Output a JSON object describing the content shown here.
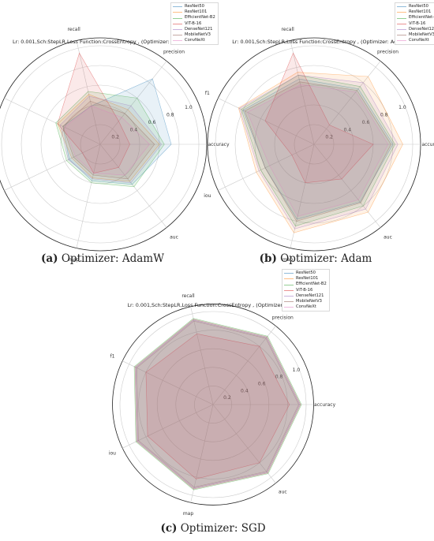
{
  "figure": {
    "captions": [
      {
        "letter": "(a)",
        "text": "Optimizer: AdamW"
      },
      {
        "letter": "(b)",
        "text": "Optimizer: Adam"
      },
      {
        "letter": "(c)",
        "text": "Optimizer: SGD"
      }
    ]
  },
  "chart_data": [
    {
      "type": "radar",
      "title": "Lr: 0.001,Sch:StepLR,Loss Function:CrossEntropy , (Optimizer: AdamW)",
      "axes": [
        "accuracy",
        "precision",
        "recall",
        "f1",
        "iou",
        "map",
        "auc"
      ],
      "rticks": [
        "0.2",
        "0.4",
        "0.6",
        "0.8",
        "1.0"
      ],
      "rlim": [
        0,
        1
      ],
      "legend_position": "top-right",
      "series": [
        {
          "name": "ResNet50",
          "color": "#1f77b4",
          "values": [
            0.72,
            0.85,
            0.4,
            0.42,
            0.35,
            0.38,
            0.52
          ]
        },
        {
          "name": "ResNet101",
          "color": "#ff7f0e",
          "values": [
            0.6,
            0.45,
            0.52,
            0.48,
            0.32,
            0.35,
            0.48
          ]
        },
        {
          "name": "EfficientNet-B2",
          "color": "#2ca02c",
          "values": [
            0.65,
            0.6,
            0.55,
            0.5,
            0.38,
            0.4,
            0.55
          ]
        },
        {
          "name": "ViT-B-16",
          "color": "#d62728",
          "values": [
            0.3,
            0.3,
            0.95,
            0.48,
            0.2,
            0.3,
            0.3
          ]
        },
        {
          "name": "DenseNet121",
          "color": "#9467bd",
          "values": [
            0.62,
            0.5,
            0.5,
            0.45,
            0.36,
            0.36,
            0.5
          ]
        },
        {
          "name": "MobileNetV3",
          "color": "#8c564b",
          "values": [
            0.55,
            0.4,
            0.45,
            0.42,
            0.3,
            0.32,
            0.45
          ]
        },
        {
          "name": "ConvNeXt",
          "color": "#e377c2",
          "values": [
            0.5,
            0.35,
            0.4,
            0.4,
            0.28,
            0.3,
            0.4
          ]
        }
      ]
    },
    {
      "type": "radar",
      "title": "Lr: 0.001,Sch:StepLR,Loss Function:CrossEntropy , (Optimizer: Adam)",
      "axes": [
        "accuracy",
        "precision",
        "recall",
        "f1",
        "iou",
        "map",
        "auc"
      ],
      "rticks": [
        "0.2",
        "0.4",
        "0.6",
        "0.8",
        "1.0"
      ],
      "rlim": [
        0,
        1
      ],
      "legend_position": "top-right",
      "series": [
        {
          "name": "ResNet50",
          "color": "#1f77b4",
          "values": [
            0.8,
            0.72,
            0.68,
            0.8,
            0.55,
            0.78,
            0.75
          ]
        },
        {
          "name": "ResNet101",
          "color": "#ff7f0e",
          "values": [
            0.9,
            0.88,
            0.75,
            0.85,
            0.65,
            0.92,
            0.88
          ]
        },
        {
          "name": "EfficientNet-B2",
          "color": "#2ca02c",
          "values": [
            0.82,
            0.75,
            0.72,
            0.82,
            0.6,
            0.85,
            0.8
          ]
        },
        {
          "name": "ViT-B-16",
          "color": "#d62728",
          "values": [
            0.6,
            0.25,
            0.95,
            0.55,
            0.25,
            0.4,
            0.45
          ]
        },
        {
          "name": "DenseNet121",
          "color": "#9467bd",
          "values": [
            0.85,
            0.8,
            0.72,
            0.84,
            0.62,
            0.88,
            0.84
          ]
        },
        {
          "name": "MobileNetV3",
          "color": "#8c564b",
          "values": [
            0.78,
            0.7,
            0.65,
            0.78,
            0.55,
            0.8,
            0.76
          ]
        },
        {
          "name": "ConvNeXt",
          "color": "#e377c2",
          "values": [
            0.75,
            0.68,
            0.62,
            0.75,
            0.5,
            0.75,
            0.72
          ]
        }
      ]
    },
    {
      "type": "radar",
      "title": "Lr: 0.001,Sch:StepLR,Loss Function:CrossEntropy , (Optimizer: SGD)",
      "axes": [
        "accuracy",
        "precision",
        "recall",
        "f1",
        "iou",
        "map",
        "auc"
      ],
      "rticks": [
        "0.2",
        "0.4",
        "0.6",
        "0.8",
        "1.0"
      ],
      "rlim": [
        0,
        1
      ],
      "legend_position": "top-center",
      "series": [
        {
          "name": "ResNet50",
          "color": "#1f77b4",
          "values": [
            0.93,
            0.92,
            0.93,
            0.92,
            0.9,
            0.92,
            0.93
          ]
        },
        {
          "name": "ResNet101",
          "color": "#ff7f0e",
          "values": [
            0.94,
            0.93,
            0.94,
            0.93,
            0.91,
            0.93,
            0.94
          ]
        },
        {
          "name": "EfficientNet-B2",
          "color": "#2ca02c",
          "values": [
            0.95,
            0.94,
            0.95,
            0.94,
            0.92,
            0.94,
            0.95
          ]
        },
        {
          "name": "ViT-B-16",
          "color": "#d62728",
          "values": [
            0.82,
            0.8,
            0.78,
            0.8,
            0.78,
            0.82,
            0.8
          ]
        },
        {
          "name": "DenseNet121",
          "color": "#9467bd",
          "values": [
            0.94,
            0.93,
            0.94,
            0.93,
            0.91,
            0.93,
            0.94
          ]
        },
        {
          "name": "MobileNetV3",
          "color": "#8c564b",
          "values": [
            0.92,
            0.91,
            0.92,
            0.91,
            0.89,
            0.91,
            0.92
          ]
        },
        {
          "name": "ConvNeXt",
          "color": "#e377c2",
          "values": [
            0.93,
            0.92,
            0.93,
            0.92,
            0.9,
            0.92,
            0.93
          ]
        }
      ]
    }
  ]
}
